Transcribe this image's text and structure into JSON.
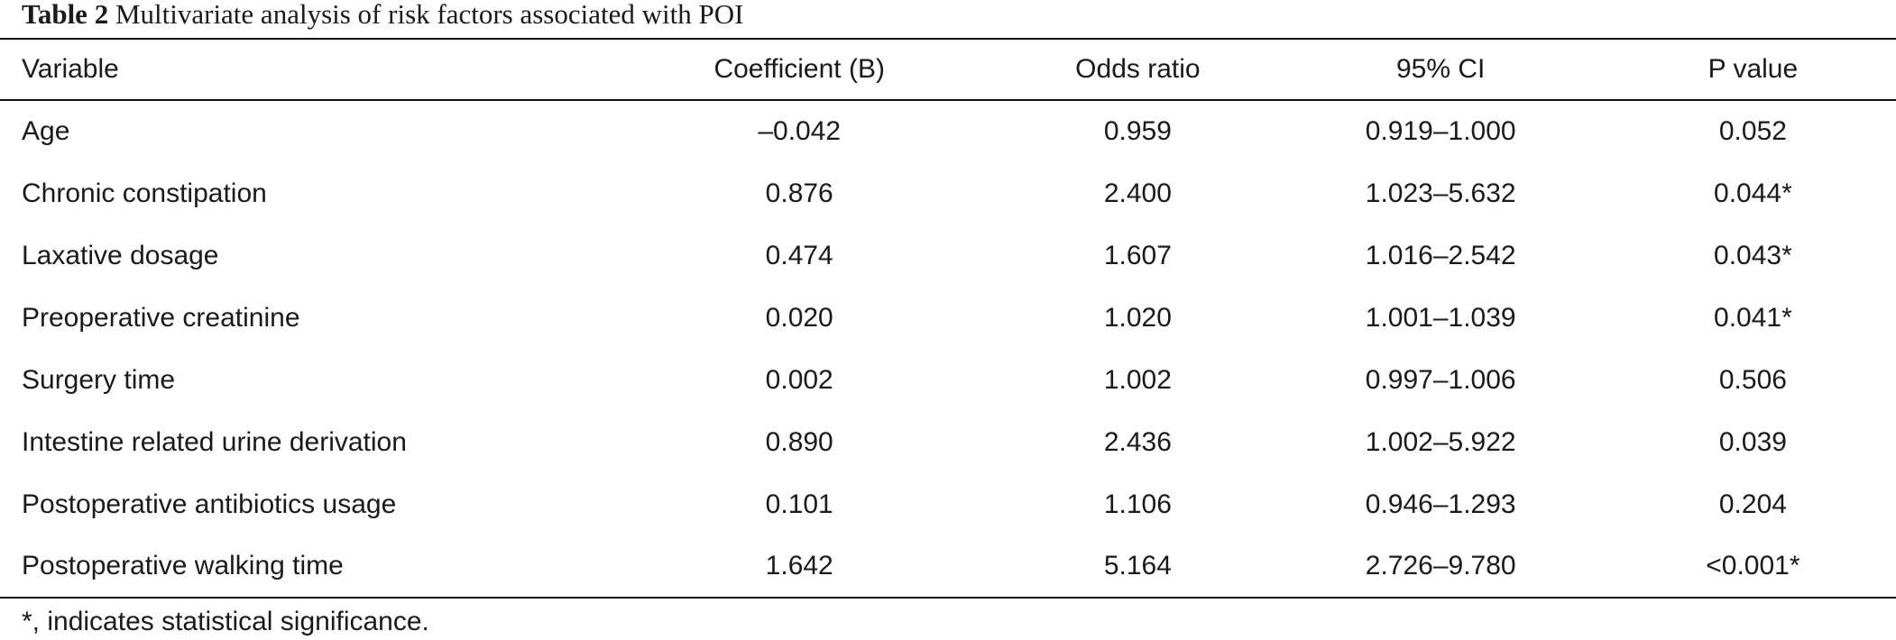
{
  "caption": {
    "label": "Table 2",
    "text": "Multivariate analysis of risk factors associated with POI"
  },
  "table": {
    "headers": [
      "Variable",
      "Coefficient (B)",
      "Odds ratio",
      "95% CI",
      "P value"
    ],
    "rows": [
      [
        "Age",
        "–0.042",
        "0.959",
        "0.919–1.000",
        "0.052"
      ],
      [
        "Chronic constipation",
        "0.876",
        "2.400",
        "1.023–5.632",
        "0.044*"
      ],
      [
        "Laxative dosage",
        "0.474",
        "1.607",
        "1.016–2.542",
        "0.043*"
      ],
      [
        "Preoperative creatinine",
        "0.020",
        "1.020",
        "1.001–1.039",
        "0.041*"
      ],
      [
        "Surgery time",
        "0.002",
        "1.002",
        "0.997–1.006",
        "0.506"
      ],
      [
        "Intestine related urine derivation",
        "0.890",
        "2.436",
        "1.002–5.922",
        "0.039"
      ],
      [
        "Postoperative antibiotics usage",
        "0.101",
        "1.106",
        "0.946–1.293",
        "0.204"
      ],
      [
        "Postoperative walking time",
        "1.642",
        "5.164",
        "2.726–9.780",
        "<0.001*"
      ]
    ]
  },
  "footnote": "*, indicates statistical significance."
}
